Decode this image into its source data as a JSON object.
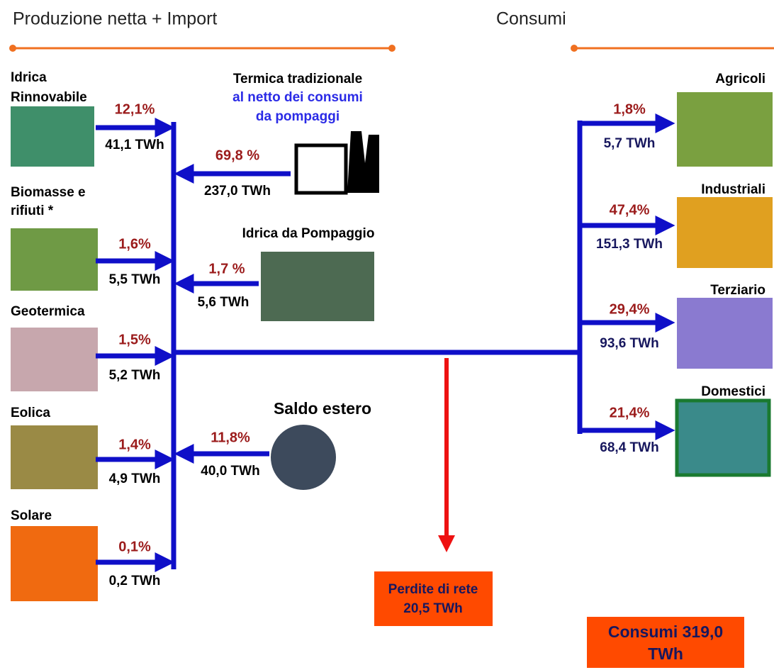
{
  "header": {
    "left": "Produzione netta + Import",
    "right": "Consumi"
  },
  "sources": [
    {
      "label": [
        "Idrica",
        "Rinnovabile"
      ],
      "share": "12,1%",
      "energy": "41,1 TWh"
    },
    {
      "label": [
        "Biomasse e",
        "rifiuti *"
      ],
      "share": "1,6%",
      "energy": "5,5 TWh"
    },
    {
      "label": [
        "Geotermica"
      ],
      "share": "1,5%",
      "energy": "5,2 TWh"
    },
    {
      "label": [
        "Eolica"
      ],
      "share": "1,4%",
      "energy": "4,9 TWh"
    },
    {
      "label": [
        "Solare"
      ],
      "share": "0,1%",
      "energy": "0,2 TWh"
    }
  ],
  "inputs": [
    {
      "label": [
        "Termica tradizionale",
        "al netto dei consumi",
        "da pompaggi"
      ],
      "share": "69,8 %",
      "energy": "237,0 TWh"
    },
    {
      "label": [
        "Idrica da Pompaggio"
      ],
      "share": "1,7 %",
      "energy": "5,6 TWh"
    },
    {
      "label": [
        "Saldo estero"
      ],
      "share": "11,8%",
      "energy": "40,0 TWh"
    }
  ],
  "consumers": [
    {
      "label": "Agricoli",
      "share": "1,8%",
      "energy": "5,7 TWh"
    },
    {
      "label": "Industriali",
      "share": "47,4%",
      "energy": "151,3 TWh"
    },
    {
      "label": "Terziario",
      "share": "29,4%",
      "energy": "93,6 TWh"
    },
    {
      "label": "Domestici",
      "share": "21,4%",
      "energy": "68,4 TWh"
    }
  ],
  "losses": {
    "label": "Perdite di rete",
    "energy": "20,5 TWh"
  },
  "total": {
    "lines": [
      "Consumi 319,0",
      "TWh"
    ]
  }
}
